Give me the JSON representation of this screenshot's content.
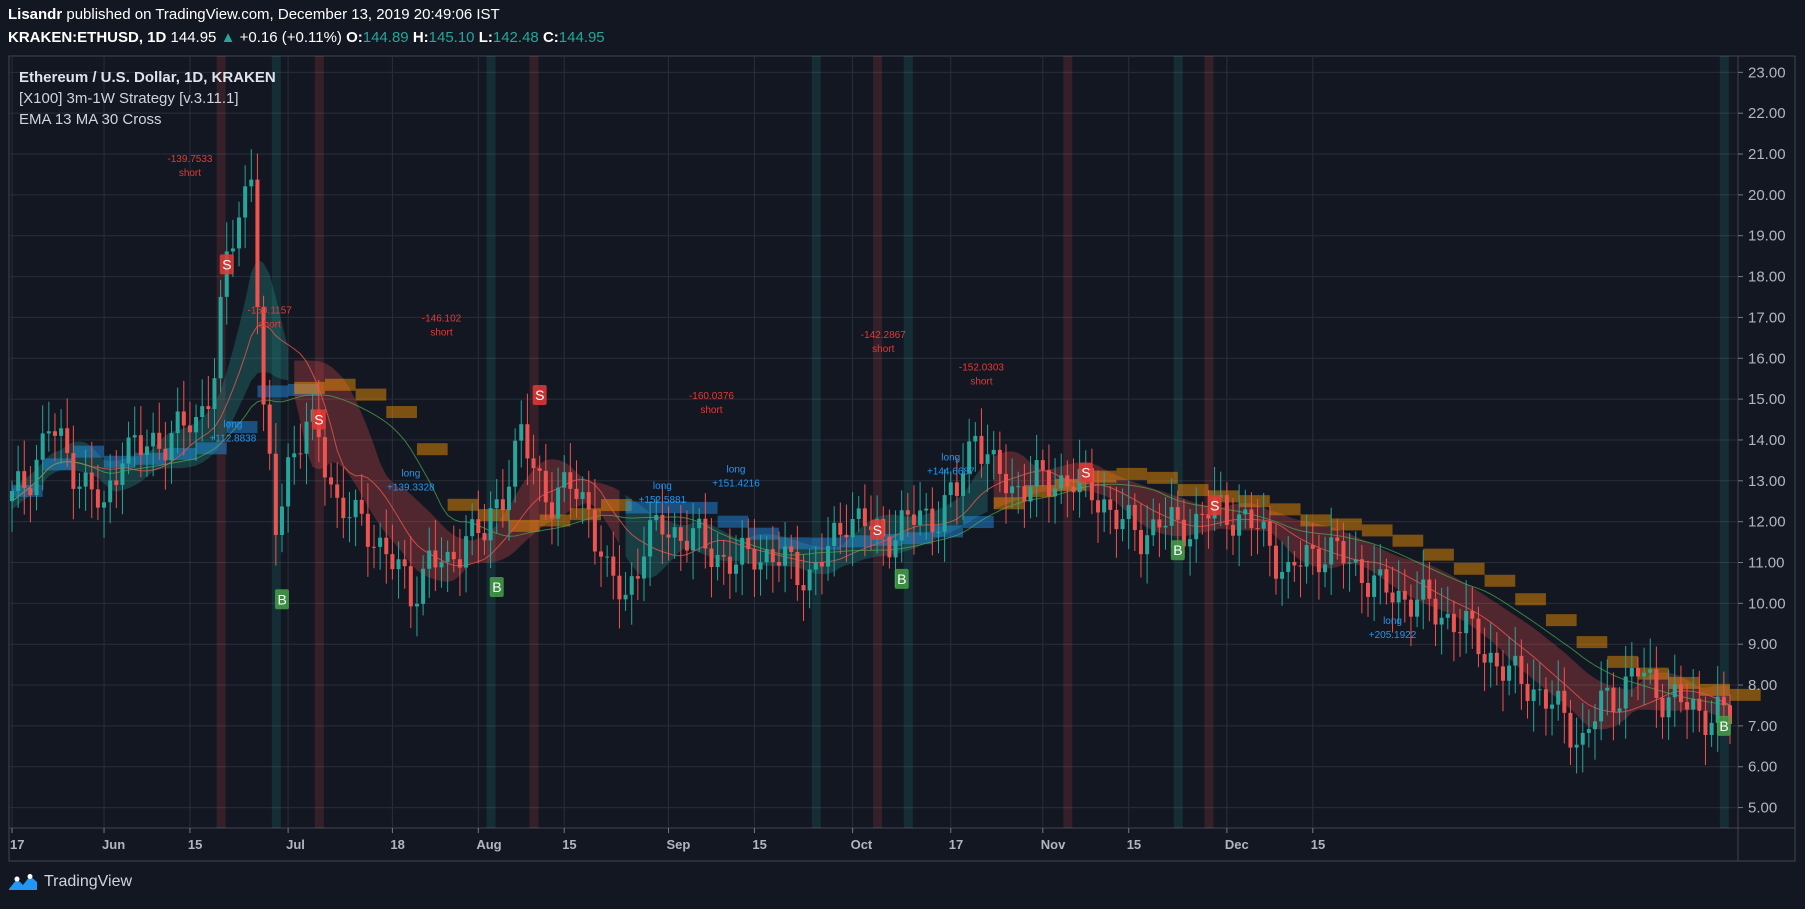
{
  "header": {
    "author": "Lisandr",
    "published_text": "published on TradingView.com, December 13, 2019 20:49:06 IST",
    "symbol": "KRAKEN:ETHUSD, 1D",
    "last_price": "144.95",
    "change": "+0.16 (+0.11%)",
    "open_label": "O:",
    "open": "144.89",
    "high_label": "H:",
    "high": "145.10",
    "low_label": "L:",
    "low": "142.48",
    "close_label": "C:",
    "close": "144.95"
  },
  "legend": {
    "title": "Ethereum / U.S. Dollar, 1D, KRAKEN",
    "study1": "[X100] 3m-1W Strategy [v.3.11.1]",
    "study2": "EMA 13 MA 30 Cross"
  },
  "footer": {
    "brand": "TradingView",
    "icon": "tradingview-logo-icon"
  },
  "colors": {
    "background": "#131722",
    "up": "#26a69a",
    "down": "#ef5350",
    "grid": "#2a2e39"
  },
  "chart_data": {
    "type": "candlestick",
    "y_ticks": [
      "23.00",
      "22.00",
      "21.00",
      "20.00",
      "19.00",
      "18.00",
      "17.00",
      "16.00",
      "15.00",
      "14.00",
      "13.00",
      "12.00",
      "11.00",
      "10.00",
      "9.00",
      "8.00",
      "7.00",
      "6.00",
      "5.00"
    ],
    "ylim": [
      4.5,
      23.4
    ],
    "x_ticks": [
      {
        "label": "17",
        "day": 0
      },
      {
        "label": "Jun",
        "day": 15
      },
      {
        "label": "15",
        "day": 29
      },
      {
        "label": "Jul",
        "day": 45
      },
      {
        "label": "18",
        "day": 62
      },
      {
        "label": "Aug",
        "day": 76
      },
      {
        "label": "15",
        "day": 90
      },
      {
        "label": "Sep",
        "day": 107
      },
      {
        "label": "15",
        "day": 121
      },
      {
        "label": "Oct",
        "day": 137
      },
      {
        "label": "17",
        "day": 153
      },
      {
        "label": "Nov",
        "day": 168
      },
      {
        "label": "15",
        "day": 182
      },
      {
        "label": "Dec",
        "day": 198
      },
      {
        "label": "15",
        "day": 212
      }
    ],
    "last_day": 280,
    "closes": [
      [
        0,
        12.5
      ],
      [
        3,
        13.2
      ],
      [
        6,
        14.3
      ],
      [
        9,
        13.6
      ],
      [
        12,
        12.9
      ],
      [
        15,
        12.2
      ],
      [
        18,
        13.9
      ],
      [
        21,
        13.7
      ],
      [
        24,
        14.0
      ],
      [
        27,
        14.2
      ],
      [
        30,
        14.4
      ],
      [
        33,
        15.7
      ],
      [
        35,
        18.3
      ],
      [
        37,
        19.5
      ],
      [
        39,
        20.7
      ],
      [
        41,
        14.5
      ],
      [
        43,
        11.8
      ],
      [
        45,
        13.5
      ],
      [
        48,
        14.3
      ],
      [
        50,
        14.0
      ],
      [
        53,
        12.5
      ],
      [
        56,
        12.0
      ],
      [
        59,
        11.7
      ],
      [
        62,
        11.0
      ],
      [
        65,
        10.2
      ],
      [
        68,
        11.1
      ],
      [
        71,
        10.8
      ],
      [
        74,
        11.8
      ],
      [
        77,
        11.6
      ],
      [
        80,
        12.8
      ],
      [
        83,
        14.1
      ],
      [
        85,
        13.2
      ],
      [
        88,
        12.6
      ],
      [
        91,
        12.8
      ],
      [
        94,
        12.4
      ],
      [
        97,
        10.6
      ],
      [
        100,
        10.2
      ],
      [
        103,
        11.4
      ],
      [
        106,
        11.9
      ],
      [
        109,
        11.7
      ],
      [
        112,
        11.5
      ],
      [
        115,
        11.2
      ],
      [
        118,
        10.9
      ],
      [
        121,
        11.3
      ],
      [
        124,
        11.1
      ],
      [
        127,
        10.9
      ],
      [
        130,
        10.7
      ],
      [
        133,
        11.2
      ],
      [
        136,
        12.2
      ],
      [
        139,
        11.9
      ],
      [
        142,
        11.6
      ],
      [
        145,
        11.9
      ],
      [
        148,
        12.1
      ],
      [
        151,
        12.2
      ],
      [
        154,
        12.7
      ],
      [
        157,
        14.3
      ],
      [
        160,
        13.2
      ],
      [
        163,
        12.8
      ],
      [
        166,
        13.0
      ],
      [
        169,
        12.9
      ],
      [
        172,
        13.1
      ],
      [
        175,
        12.8
      ],
      [
        178,
        12.5
      ],
      [
        181,
        11.9
      ],
      [
        184,
        11.7
      ],
      [
        187,
        12.0
      ],
      [
        190,
        11.8
      ],
      [
        193,
        12.0
      ],
      [
        196,
        12.3
      ],
      [
        199,
        12.2
      ],
      [
        202,
        11.9
      ],
      [
        205,
        11.5
      ],
      [
        208,
        10.6
      ],
      [
        211,
        11.2
      ],
      [
        214,
        11.3
      ],
      [
        217,
        11.1
      ],
      [
        220,
        10.8
      ],
      [
        223,
        10.3
      ],
      [
        226,
        10.2
      ],
      [
        229,
        10.1
      ],
      [
        232,
        9.8
      ],
      [
        235,
        9.6
      ],
      [
        238,
        9.2
      ],
      [
        241,
        8.7
      ],
      [
        244,
        8.2
      ],
      [
        247,
        8.1
      ],
      [
        250,
        7.6
      ],
      [
        253,
        7.2
      ],
      [
        256,
        6.6
      ],
      [
        259,
        7.5
      ],
      [
        262,
        7.9
      ],
      [
        265,
        8.3
      ],
      [
        268,
        7.9
      ],
      [
        271,
        7.6
      ],
      [
        274,
        7.4
      ],
      [
        277,
        7.3
      ],
      [
        280,
        7.2
      ]
    ],
    "annotations": [
      {
        "day": 29,
        "price": 20.8,
        "value": "-139.7533",
        "side": "short"
      },
      {
        "day": 42,
        "price": 17.1,
        "value": "-150.1157",
        "side": "short"
      },
      {
        "day": 70,
        "price": 16.9,
        "value": "-146.102",
        "side": "short"
      },
      {
        "day": 114,
        "price": 15.0,
        "value": "-160.0376",
        "side": "short"
      },
      {
        "day": 142,
        "price": 16.5,
        "value": "-142.2867",
        "side": "short"
      },
      {
        "day": 158,
        "price": 15.7,
        "value": "-152.0303",
        "side": "short"
      },
      {
        "day": 36,
        "price": 14.3,
        "value": "+112.8838",
        "side": "long"
      },
      {
        "day": 65,
        "price": 13.1,
        "value": "+139.3328",
        "side": "long"
      },
      {
        "day": 106,
        "price": 12.8,
        "value": "+152.5881",
        "side": "long"
      },
      {
        "day": 118,
        "price": 13.2,
        "value": "+151.4216",
        "side": "long"
      },
      {
        "day": 153,
        "price": 13.5,
        "value": "+144.6687",
        "side": "long"
      },
      {
        "day": 225,
        "price": 9.5,
        "value": "+205.1922",
        "side": "long"
      }
    ],
    "signals": [
      {
        "type": "S",
        "day": 35,
        "price": 18.3
      },
      {
        "type": "S",
        "day": 50,
        "price": 14.5
      },
      {
        "type": "S",
        "day": 86,
        "price": 15.1
      },
      {
        "type": "S",
        "day": 141,
        "price": 11.8
      },
      {
        "type": "S",
        "day": 175,
        "price": 13.2
      },
      {
        "type": "S",
        "day": 196,
        "price": 12.4
      },
      {
        "type": "B",
        "day": 44,
        "price": 10.1
      },
      {
        "type": "B",
        "day": 79,
        "price": 10.4
      },
      {
        "type": "B",
        "day": 145,
        "price": 10.6
      },
      {
        "type": "B",
        "day": 190,
        "price": 11.3
      },
      {
        "type": "B",
        "day": 279,
        "price": 7.0
      }
    ]
  }
}
